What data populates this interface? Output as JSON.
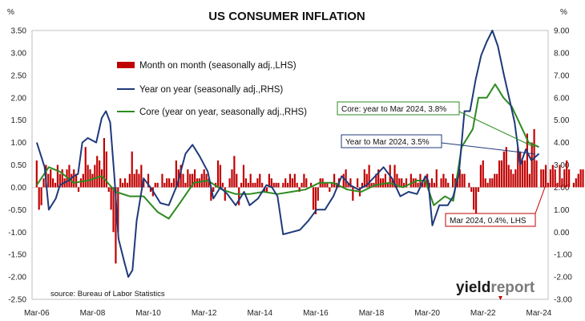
{
  "chart_data": {
    "type": "bar+line",
    "title": "US CONSUMER INFLATION",
    "y_left_unit": "%",
    "y_right_unit": "%",
    "y_left_ticks": [
      "3.50",
      "3.00",
      "2.50",
      "2.00",
      "1.50",
      "1.00",
      "0.50",
      "0.00",
      "-0.50",
      "-1.00",
      "-1.50",
      "-2.00",
      "-2.50"
    ],
    "y_right_ticks": [
      "9.00",
      "8.00",
      "7.00",
      "6.00",
      "5.00",
      "4.00",
      "3.00",
      "2.00",
      "1.00",
      "0.00",
      "-1.00",
      "-2.00",
      "-3.00"
    ],
    "ylim_left": [
      -2.5,
      3.5
    ],
    "ylim_right": [
      -3,
      9
    ],
    "x_ticks": [
      "Mar-06",
      "Mar-08",
      "Mar-10",
      "Mar-12",
      "Mar-14",
      "Mar-16",
      "Mar-18",
      "Mar-20",
      "Mar-22",
      "Mar-24"
    ],
    "x_start": "2006-03",
    "x_end": "2024-03",
    "grid": false,
    "series": [
      {
        "name": "Month on month (seasonally adj.,LHS)",
        "type": "bar",
        "axis": "left",
        "color": "#c00000",
        "values": [
          0.6,
          -0.5,
          -0.4,
          0.2,
          0.5,
          0.3,
          0.4,
          0.2,
          0.1,
          0.5,
          0.3,
          0.4,
          0.2,
          0.4,
          0.5,
          0.3,
          0.4,
          0.3,
          -0.1,
          0.2,
          0.3,
          0.9,
          0.5,
          0.4,
          0.3,
          0.5,
          0.7,
          0.6,
          0.4,
          1.1,
          0.8,
          -0.1,
          -0.5,
          -1.0,
          -1.7,
          -1.0,
          0.2,
          0.1,
          0.2,
          0.1,
          0.3,
          0.8,
          0.3,
          0.4,
          0.3,
          0.5,
          0.2,
          0.0,
          0.3,
          -0.1,
          -0.2,
          0.1,
          0.1,
          0.0,
          0.3,
          0.1,
          0.2,
          0.2,
          0.1,
          0.2,
          0.6,
          0.4,
          0.5,
          0.3,
          0.1,
          0.4,
          0.3,
          0.3,
          0.4,
          0.2,
          0.2,
          0.3,
          0.4,
          0.3,
          0.2,
          -0.3,
          -0.1,
          0.1,
          0.6,
          0.5,
          0.1,
          -0.3,
          0.0,
          0.2,
          0.4,
          0.7,
          0.3,
          -0.4,
          0.1,
          0.5,
          0.2,
          0.1,
          0.3,
          0.1,
          0.1,
          0.2,
          0.3,
          0.1,
          -0.1,
          -0.1,
          0.3,
          0.2,
          0.1,
          0.1,
          0.1,
          0.0,
          0.1,
          0.2,
          0.1,
          0.3,
          0.2,
          0.3,
          0.1,
          -0.1,
          0.1,
          0.3,
          0.2,
          0.0,
          0.1,
          -0.5,
          -0.6,
          -0.3,
          0.2,
          0.2,
          0.1,
          0.1,
          -0.1,
          0.1,
          0.3,
          0.1,
          0.2,
          0.0,
          0.3,
          0.4,
          0.1,
          0.2,
          -0.3,
          0.0,
          0.2,
          -0.2,
          0.1,
          0.4,
          0.3,
          0.5,
          0.1,
          0.1,
          0.3,
          0.4,
          0.2,
          0.2,
          0.3,
          0.1,
          0.5,
          0.2,
          0.5,
          0.3,
          0.2,
          0.2,
          0.1,
          0.2,
          0.0,
          0.3,
          0.2,
          0.2,
          0.1,
          0.3,
          0.1,
          0.2,
          0.3,
          0.1,
          0.2,
          0.1,
          0.4,
          0.0,
          0.2,
          0.3,
          0.2,
          0.1,
          0.0,
          0.3,
          0.2,
          0.2,
          0.4,
          0.3,
          0.3,
          0.0,
          0.1,
          -0.1,
          -0.5,
          -0.8,
          -0.1,
          0.5,
          0.6,
          0.2,
          0.1,
          0.2,
          0.2,
          0.3,
          0.3,
          0.6,
          0.6,
          0.8,
          0.9,
          0.5,
          0.4,
          0.3,
          0.4,
          0.9,
          0.8,
          0.6,
          0.6,
          1.2,
          0.3,
          1.0,
          1.3,
          0.6,
          0.0,
          0.4,
          0.4,
          0.5,
          0.1,
          0.4,
          0.5,
          0.4,
          0.1,
          0.5,
          0.2,
          0.4,
          0.6,
          0.4,
          0.0,
          0.1,
          0.2,
          0.3,
          0.4,
          0.4
        ]
      },
      {
        "name": "Year on year (seasonally adj.,RHS)",
        "type": "line",
        "axis": "right",
        "color": "#1f3a7a",
        "x": [
          2006.17,
          2006.45,
          2006.6,
          2006.85,
          2007.0,
          2007.3,
          2007.5,
          2007.65,
          2007.8,
          2008.0,
          2008.3,
          2008.5,
          2008.65,
          2008.8,
          2008.95,
          2009.1,
          2009.3,
          2009.45,
          2009.6,
          2009.75,
          2010.0,
          2010.3,
          2010.6,
          2010.9,
          2011.2,
          2011.5,
          2011.75,
          2012.0,
          2012.3,
          2012.5,
          2012.75,
          2013.0,
          2013.3,
          2013.6,
          2013.8,
          2014.1,
          2014.4,
          2014.6,
          2014.8,
          2015.0,
          2015.3,
          2015.6,
          2015.9,
          2016.2,
          2016.5,
          2016.8,
          2017.1,
          2017.4,
          2017.7,
          2018.0,
          2018.3,
          2018.6,
          2018.9,
          2019.2,
          2019.5,
          2019.8,
          2020.1,
          2020.2,
          2020.35,
          2020.6,
          2020.9,
          2021.1,
          2021.3,
          2021.5,
          2021.7,
          2021.9,
          2022.1,
          2022.3,
          2022.5,
          2022.7,
          2022.9,
          2023.1,
          2023.3,
          2023.5,
          2023.7,
          2023.9,
          2024.17
        ],
        "values": [
          4.0,
          2.9,
          1.0,
          1.5,
          2.1,
          2.3,
          2.5,
          2.6,
          4.0,
          4.2,
          4.0,
          5.1,
          5.4,
          4.9,
          2.5,
          -0.3,
          -1.3,
          -2.0,
          -1.7,
          0.5,
          2.4,
          1.9,
          1.3,
          1.2,
          2.1,
          3.5,
          3.9,
          3.4,
          2.7,
          1.5,
          2.0,
          1.7,
          1.2,
          1.8,
          1.2,
          1.5,
          2.1,
          2.0,
          1.6,
          -0.1,
          0.0,
          0.1,
          0.5,
          1.0,
          1.0,
          1.6,
          2.5,
          2.1,
          1.9,
          2.1,
          2.5,
          2.9,
          2.4,
          1.6,
          1.8,
          1.7,
          2.5,
          2.3,
          0.3,
          1.2,
          1.2,
          1.6,
          2.6,
          5.4,
          5.4,
          6.8,
          7.9,
          8.5,
          9.0,
          8.3,
          7.1,
          6.0,
          4.9,
          3.0,
          3.7,
          3.2,
          3.5
        ]
      },
      {
        "name": "Core (year on year, seasonally adj.,RHS)",
        "type": "line",
        "axis": "right",
        "color": "#2e8b20",
        "x": [
          2006.17,
          2006.6,
          2007.0,
          2007.5,
          2008.0,
          2008.5,
          2009.0,
          2009.5,
          2010.0,
          2010.5,
          2010.9,
          2011.3,
          2011.8,
          2012.3,
          2012.8,
          2013.3,
          2013.8,
          2014.3,
          2014.8,
          2015.3,
          2015.8,
          2016.3,
          2016.8,
          2017.3,
          2017.8,
          2018.3,
          2018.8,
          2019.3,
          2019.8,
          2020.1,
          2020.4,
          2020.8,
          2021.1,
          2021.4,
          2021.8,
          2022.0,
          2022.3,
          2022.6,
          2022.9,
          2023.2,
          2023.5,
          2023.8,
          2024.17
        ],
        "values": [
          2.1,
          2.9,
          2.7,
          2.2,
          2.3,
          2.5,
          1.8,
          1.6,
          1.6,
          0.9,
          0.6,
          1.3,
          2.2,
          2.3,
          1.9,
          1.7,
          1.7,
          1.8,
          1.7,
          1.8,
          1.9,
          2.2,
          2.2,
          1.9,
          1.8,
          2.1,
          2.2,
          2.0,
          2.3,
          2.3,
          1.2,
          1.6,
          1.4,
          3.8,
          4.6,
          6.0,
          6.0,
          6.6,
          6.0,
          5.6,
          4.8,
          4.0,
          3.8
        ]
      }
    ],
    "annotations": [
      {
        "text": "Core: year to Mar 2024, 3.8%"
      },
      {
        "text": "Year to Mar 2024, 3.5%"
      },
      {
        "text": "Mar 2024, 0.4%, LHS"
      }
    ],
    "source": "source: Bureau of Labor Statistics"
  },
  "logo": {
    "part1": "yield",
    "part2": "report"
  },
  "colors": {
    "bar": "#c00000",
    "yoy": "#1f3a7a",
    "core": "#2e8b20",
    "axis": "#bfbfbf"
  }
}
